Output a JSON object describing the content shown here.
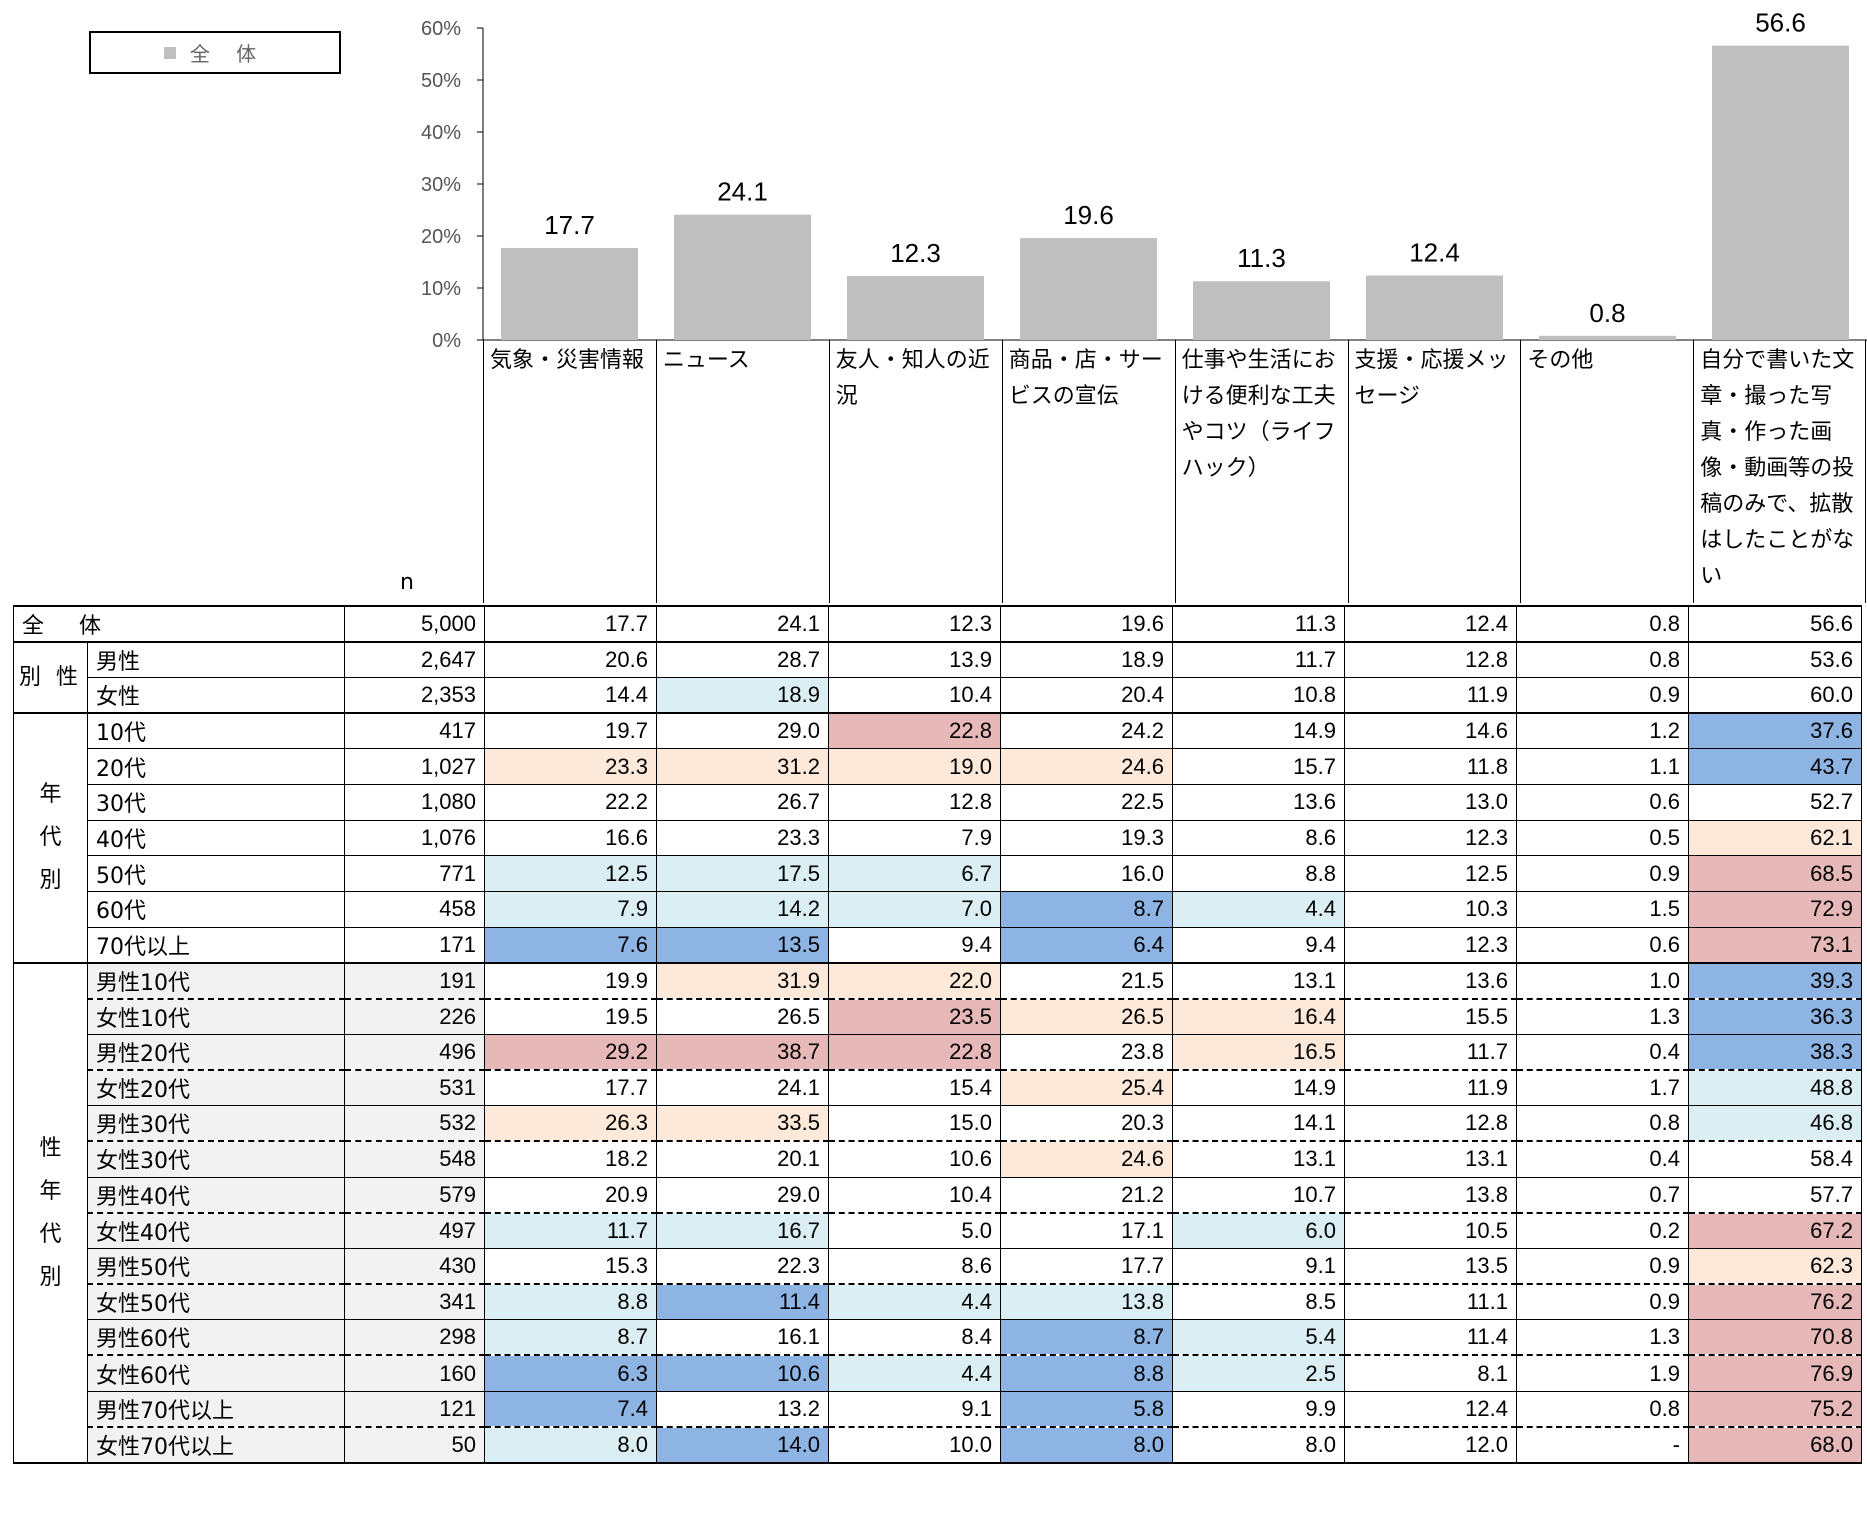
{
  "legend": {
    "label": "全 体"
  },
  "colors": {
    "bar": "#bfbfbf",
    "light_blue": "#daeef3",
    "dark_blue": "#8eb4e3",
    "peach": "#fde9d9",
    "pink": "#e6b8b7"
  },
  "chart_data": {
    "type": "bar",
    "categories": [
      "気象・災害情報",
      "ニュース",
      "友人・知人の近況",
      "商品・店・サービスの宣伝",
      "仕事や生活における便利な工夫やコツ（ライフハック）",
      "支援・応援メッセージ",
      "その他",
      "自分で書いた文章・撮った写真・作った画像・動画等の投稿のみで、拡散はしたことがない"
    ],
    "series": [
      {
        "name": "全 体",
        "values": [
          17.7,
          24.1,
          12.3,
          19.6,
          11.3,
          12.4,
          0.8,
          56.6
        ]
      }
    ],
    "y_ticks": [
      "0%",
      "10%",
      "20%",
      "30%",
      "40%",
      "50%",
      "60%"
    ],
    "ylim": [
      0,
      60
    ],
    "grid": false,
    "legend_position": "top-left"
  },
  "table": {
    "n_header": "n",
    "col_headers": [
      "気象・災害情報",
      "ニュース",
      "友人・知人の近況",
      "商品・店・サービスの宣伝",
      "仕事や生活における便利な工夫やコツ（ライフハック）",
      "支援・応援メッセージ",
      "その他",
      "自分で書いた文章・撮った写真・作った画像・動画等の投稿のみで、拡散はしたことがない"
    ],
    "total_row": {
      "label": "全 体",
      "n": "5,000",
      "values": [
        "17.7",
        "24.1",
        "12.3",
        "19.6",
        "11.3",
        "12.4",
        "0.8",
        "56.6"
      ]
    },
    "groups": [
      {
        "label": "別 性",
        "rows": [
          {
            "label": "男性",
            "n": "2,647",
            "values": [
              "20.6",
              "28.7",
              "13.9",
              "18.9",
              "11.7",
              "12.8",
              "0.8",
              "53.6"
            ]
          },
          {
            "label": "女性",
            "n": "2,353",
            "values": [
              "14.4",
              "18.9",
              "10.4",
              "20.4",
              "10.8",
              "11.9",
              "0.9",
              "60.0"
            ]
          }
        ]
      },
      {
        "label": "年代別",
        "rows": [
          {
            "label": "10代",
            "n": "417",
            "values": [
              "19.7",
              "29.0",
              "22.8",
              "24.2",
              "14.9",
              "14.6",
              "1.2",
              "37.6"
            ]
          },
          {
            "label": "20代",
            "n": "1,027",
            "values": [
              "23.3",
              "31.2",
              "19.0",
              "24.6",
              "15.7",
              "11.8",
              "1.1",
              "43.7"
            ]
          },
          {
            "label": "30代",
            "n": "1,080",
            "values": [
              "22.2",
              "26.7",
              "12.8",
              "22.5",
              "13.6",
              "13.0",
              "0.6",
              "52.7"
            ]
          },
          {
            "label": "40代",
            "n": "1,076",
            "values": [
              "16.6",
              "23.3",
              "7.9",
              "19.3",
              "8.6",
              "12.3",
              "0.5",
              "62.1"
            ]
          },
          {
            "label": "50代",
            "n": "771",
            "values": [
              "12.5",
              "17.5",
              "6.7",
              "16.0",
              "8.8",
              "12.5",
              "0.9",
              "68.5"
            ]
          },
          {
            "label": "60代",
            "n": "458",
            "values": [
              "7.9",
              "14.2",
              "7.0",
              "8.7",
              "4.4",
              "10.3",
              "1.5",
              "72.9"
            ]
          },
          {
            "label": "70代以上",
            "n": "171",
            "values": [
              "7.6",
              "13.5",
              "9.4",
              "6.4",
              "9.4",
              "12.3",
              "0.6",
              "73.1"
            ]
          }
        ]
      },
      {
        "label": "性年代別",
        "rows": [
          {
            "label": "男性10代",
            "n": "191",
            "values": [
              "19.9",
              "31.9",
              "22.0",
              "21.5",
              "13.1",
              "13.6",
              "1.0",
              "39.3"
            ]
          },
          {
            "label": "女性10代",
            "n": "226",
            "values": [
              "19.5",
              "26.5",
              "23.5",
              "26.5",
              "16.4",
              "15.5",
              "1.3",
              "36.3"
            ]
          },
          {
            "label": "男性20代",
            "n": "496",
            "values": [
              "29.2",
              "38.7",
              "22.8",
              "23.8",
              "16.5",
              "11.7",
              "0.4",
              "38.3"
            ]
          },
          {
            "label": "女性20代",
            "n": "531",
            "values": [
              "17.7",
              "24.1",
              "15.4",
              "25.4",
              "14.9",
              "11.9",
              "1.7",
              "48.8"
            ]
          },
          {
            "label": "男性30代",
            "n": "532",
            "values": [
              "26.3",
              "33.5",
              "15.0",
              "20.3",
              "14.1",
              "12.8",
              "0.8",
              "46.8"
            ]
          },
          {
            "label": "女性30代",
            "n": "548",
            "values": [
              "18.2",
              "20.1",
              "10.6",
              "24.6",
              "13.1",
              "13.1",
              "0.4",
              "58.4"
            ]
          },
          {
            "label": "男性40代",
            "n": "579",
            "values": [
              "20.9",
              "29.0",
              "10.4",
              "21.2",
              "10.7",
              "13.8",
              "0.7",
              "57.7"
            ]
          },
          {
            "label": "女性40代",
            "n": "497",
            "values": [
              "11.7",
              "16.7",
              "5.0",
              "17.1",
              "6.0",
              "10.5",
              "0.2",
              "67.2"
            ]
          },
          {
            "label": "男性50代",
            "n": "430",
            "values": [
              "15.3",
              "22.3",
              "8.6",
              "17.7",
              "9.1",
              "13.5",
              "0.9",
              "62.3"
            ]
          },
          {
            "label": "女性50代",
            "n": "341",
            "values": [
              "8.8",
              "11.4",
              "4.4",
              "13.8",
              "8.5",
              "11.1",
              "0.9",
              "76.2"
            ]
          },
          {
            "label": "男性60代",
            "n": "298",
            "values": [
              "8.7",
              "16.1",
              "8.4",
              "8.7",
              "5.4",
              "11.4",
              "1.3",
              "70.8"
            ]
          },
          {
            "label": "女性60代",
            "n": "160",
            "values": [
              "6.3",
              "10.6",
              "4.4",
              "8.8",
              "2.5",
              "8.1",
              "1.9",
              "76.9"
            ]
          },
          {
            "label": "男性70代以上",
            "n": "121",
            "values": [
              "7.4",
              "13.2",
              "9.1",
              "5.8",
              "9.9",
              "12.4",
              "0.8",
              "75.2"
            ]
          },
          {
            "label": "女性70代以上",
            "n": "50",
            "values": [
              "8.0",
              "14.0",
              "10.0",
              "8.0",
              "8.0",
              "12.0",
              "-",
              "68.0"
            ]
          }
        ]
      }
    ],
    "highlights": [
      [
        null,
        null,
        null,
        null,
        null,
        null,
        null,
        null
      ],
      [
        null,
        null,
        null,
        null,
        null,
        null,
        null,
        null
      ],
      [
        null,
        "light_blue",
        null,
        null,
        null,
        null,
        null,
        null
      ],
      [
        null,
        null,
        "pink",
        null,
        null,
        null,
        null,
        "dark_blue"
      ],
      [
        "peach",
        "peach",
        "peach",
        "peach",
        null,
        null,
        null,
        "dark_blue"
      ],
      [
        null,
        null,
        null,
        null,
        null,
        null,
        null,
        null
      ],
      [
        null,
        null,
        null,
        null,
        null,
        null,
        null,
        "peach"
      ],
      [
        "light_blue",
        "light_blue",
        "light_blue",
        null,
        null,
        null,
        null,
        "pink"
      ],
      [
        "light_blue",
        "light_blue",
        "light_blue",
        "dark_blue",
        "light_blue",
        null,
        null,
        "pink"
      ],
      [
        "dark_blue",
        "dark_blue",
        null,
        "dark_blue",
        null,
        null,
        null,
        "pink"
      ],
      [
        null,
        "peach",
        "peach",
        null,
        null,
        null,
        null,
        "dark_blue"
      ],
      [
        null,
        null,
        "pink",
        "peach",
        "peach",
        null,
        null,
        "dark_blue"
      ],
      [
        "pink",
        "pink",
        "pink",
        null,
        "peach",
        null,
        null,
        "dark_blue"
      ],
      [
        null,
        null,
        null,
        "peach",
        null,
        null,
        null,
        "light_blue"
      ],
      [
        "peach",
        "peach",
        null,
        null,
        null,
        null,
        null,
        "light_blue"
      ],
      [
        null,
        null,
        null,
        "peach",
        null,
        null,
        null,
        null
      ],
      [
        null,
        null,
        null,
        null,
        null,
        null,
        null,
        null
      ],
      [
        "light_blue",
        "light_blue",
        null,
        null,
        "light_blue",
        null,
        null,
        "pink"
      ],
      [
        null,
        null,
        null,
        null,
        null,
        null,
        null,
        "peach"
      ],
      [
        "light_blue",
        "dark_blue",
        "light_blue",
        "light_blue",
        null,
        null,
        null,
        "pink"
      ],
      [
        "light_blue",
        null,
        null,
        "dark_blue",
        "light_blue",
        null,
        null,
        "pink"
      ],
      [
        "dark_blue",
        "dark_blue",
        "light_blue",
        "dark_blue",
        "light_blue",
        null,
        null,
        "pink"
      ],
      [
        "dark_blue",
        null,
        null,
        "dark_blue",
        null,
        null,
        null,
        "pink"
      ],
      [
        "light_blue",
        "dark_blue",
        null,
        "dark_blue",
        null,
        null,
        null,
        "pink"
      ]
    ]
  }
}
